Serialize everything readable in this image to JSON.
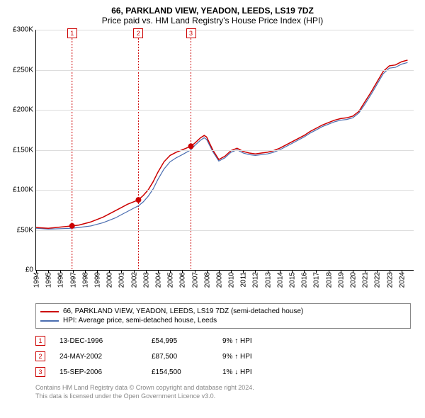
{
  "title": "66, PARKLAND VIEW, YEADON, LEEDS, LS19 7DZ",
  "subtitle": "Price paid vs. HM Land Registry's House Price Index (HPI)",
  "chart": {
    "type": "line",
    "background_color": "#ffffff",
    "grid_color": "#dddddd",
    "axis_color": "#000000",
    "ylim": [
      0,
      300000
    ],
    "ytick_step": 50000,
    "yticks": [
      {
        "v": 0,
        "label": "£0"
      },
      {
        "v": 50000,
        "label": "£50K"
      },
      {
        "v": 100000,
        "label": "£100K"
      },
      {
        "v": 150000,
        "label": "£150K"
      },
      {
        "v": 200000,
        "label": "£200K"
      },
      {
        "v": 250000,
        "label": "£250K"
      },
      {
        "v": 300000,
        "label": "£300K"
      }
    ],
    "xlim": [
      1994,
      2025
    ],
    "xticks": [
      1994,
      1995,
      1996,
      1997,
      1998,
      1999,
      2000,
      2001,
      2002,
      2003,
      2004,
      2005,
      2006,
      2007,
      2008,
      2009,
      2010,
      2011,
      2012,
      2013,
      2014,
      2015,
      2016,
      2017,
      2018,
      2019,
      2020,
      2021,
      2022,
      2023,
      2024
    ],
    "series_property": {
      "color": "#cc0000",
      "line_width": 1.5,
      "data": [
        [
          1994.0,
          53000
        ],
        [
          1995.0,
          52000
        ],
        [
          1996.0,
          53500
        ],
        [
          1996.95,
          54995
        ],
        [
          1997.5,
          56000
        ],
        [
          1998.0,
          58000
        ],
        [
          1998.5,
          60000
        ],
        [
          1999.0,
          63000
        ],
        [
          1999.5,
          66000
        ],
        [
          2000.0,
          70000
        ],
        [
          2000.5,
          74000
        ],
        [
          2001.0,
          78000
        ],
        [
          2001.5,
          82000
        ],
        [
          2002.0,
          85000
        ],
        [
          2002.4,
          87500
        ],
        [
          2002.8,
          93000
        ],
        [
          2003.2,
          100000
        ],
        [
          2003.6,
          110000
        ],
        [
          2004.0,
          122000
        ],
        [
          2004.5,
          135000
        ],
        [
          2005.0,
          143000
        ],
        [
          2005.5,
          147000
        ],
        [
          2006.0,
          150000
        ],
        [
          2006.7,
          154500
        ],
        [
          2007.0,
          158000
        ],
        [
          2007.5,
          165000
        ],
        [
          2007.8,
          168000
        ],
        [
          2008.0,
          166000
        ],
        [
          2008.5,
          150000
        ],
        [
          2009.0,
          138000
        ],
        [
          2009.5,
          142000
        ],
        [
          2010.0,
          149000
        ],
        [
          2010.5,
          152000
        ],
        [
          2011.0,
          148000
        ],
        [
          2011.5,
          146000
        ],
        [
          2012.0,
          145000
        ],
        [
          2012.5,
          146000
        ],
        [
          2013.0,
          147000
        ],
        [
          2013.5,
          149000
        ],
        [
          2014.0,
          152000
        ],
        [
          2014.5,
          156000
        ],
        [
          2015.0,
          160000
        ],
        [
          2015.5,
          164000
        ],
        [
          2016.0,
          168000
        ],
        [
          2016.5,
          173000
        ],
        [
          2017.0,
          177000
        ],
        [
          2017.5,
          181000
        ],
        [
          2018.0,
          184000
        ],
        [
          2018.5,
          187000
        ],
        [
          2019.0,
          189000
        ],
        [
          2019.5,
          190000
        ],
        [
          2020.0,
          192000
        ],
        [
          2020.5,
          198000
        ],
        [
          2021.0,
          210000
        ],
        [
          2021.5,
          222000
        ],
        [
          2022.0,
          235000
        ],
        [
          2022.5,
          248000
        ],
        [
          2023.0,
          255000
        ],
        [
          2023.5,
          256000
        ],
        [
          2024.0,
          260000
        ],
        [
          2024.5,
          262000
        ]
      ]
    },
    "series_hpi": {
      "color": "#4a6db0",
      "line_width": 1.2,
      "data": [
        [
          1994.0,
          52000
        ],
        [
          1995.0,
          51000
        ],
        [
          1996.0,
          51500
        ],
        [
          1996.95,
          52000
        ],
        [
          1997.5,
          53000
        ],
        [
          1998.0,
          54000
        ],
        [
          1998.5,
          55000
        ],
        [
          1999.0,
          57000
        ],
        [
          1999.5,
          59000
        ],
        [
          2000.0,
          62000
        ],
        [
          2000.5,
          65000
        ],
        [
          2001.0,
          69000
        ],
        [
          2001.5,
          73000
        ],
        [
          2002.0,
          77000
        ],
        [
          2002.4,
          80000
        ],
        [
          2002.8,
          85000
        ],
        [
          2003.2,
          92000
        ],
        [
          2003.6,
          101000
        ],
        [
          2004.0,
          113000
        ],
        [
          2004.5,
          126000
        ],
        [
          2005.0,
          135000
        ],
        [
          2005.5,
          140000
        ],
        [
          2006.0,
          144000
        ],
        [
          2006.7,
          150000
        ],
        [
          2007.0,
          155000
        ],
        [
          2007.5,
          162000
        ],
        [
          2007.8,
          165000
        ],
        [
          2008.0,
          163000
        ],
        [
          2008.5,
          148000
        ],
        [
          2009.0,
          136000
        ],
        [
          2009.5,
          140000
        ],
        [
          2010.0,
          147000
        ],
        [
          2010.5,
          150000
        ],
        [
          2011.0,
          146000
        ],
        [
          2011.5,
          144000
        ],
        [
          2012.0,
          143000
        ],
        [
          2012.5,
          144000
        ],
        [
          2013.0,
          145000
        ],
        [
          2013.5,
          147000
        ],
        [
          2014.0,
          150000
        ],
        [
          2014.5,
          154000
        ],
        [
          2015.0,
          158000
        ],
        [
          2015.5,
          162000
        ],
        [
          2016.0,
          166000
        ],
        [
          2016.5,
          171000
        ],
        [
          2017.0,
          175000
        ],
        [
          2017.5,
          179000
        ],
        [
          2018.0,
          182000
        ],
        [
          2018.5,
          185000
        ],
        [
          2019.0,
          187000
        ],
        [
          2019.5,
          188000
        ],
        [
          2020.0,
          190000
        ],
        [
          2020.5,
          196000
        ],
        [
          2021.0,
          207000
        ],
        [
          2021.5,
          219000
        ],
        [
          2022.0,
          232000
        ],
        [
          2022.5,
          245000
        ],
        [
          2023.0,
          252000
        ],
        [
          2023.5,
          253000
        ],
        [
          2024.0,
          257000
        ],
        [
          2024.5,
          259000
        ]
      ]
    },
    "transactions_markers": [
      {
        "num": "1",
        "x": 1996.95,
        "y": 54995
      },
      {
        "num": "2",
        "x": 2002.4,
        "y": 87500
      },
      {
        "num": "3",
        "x": 2006.71,
        "y": 154500
      }
    ],
    "marker_color": "#cc0000",
    "vline_color": "#cc0000"
  },
  "legend": {
    "items": [
      {
        "color": "#cc0000",
        "label": "66, PARKLAND VIEW, YEADON, LEEDS, LS19 7DZ (semi-detached house)"
      },
      {
        "color": "#4a6db0",
        "label": "HPI: Average price, semi-detached house, Leeds"
      }
    ]
  },
  "transactions": [
    {
      "num": "1",
      "date": "13-DEC-1996",
      "price": "£54,995",
      "hpi": "9% ↑ HPI"
    },
    {
      "num": "2",
      "date": "24-MAY-2002",
      "price": "£87,500",
      "hpi": "9% ↑ HPI"
    },
    {
      "num": "3",
      "date": "15-SEP-2006",
      "price": "£154,500",
      "hpi": "1% ↓ HPI"
    }
  ],
  "footer_line1": "Contains HM Land Registry data © Crown copyright and database right 2024.",
  "footer_line2": "This data is licensed under the Open Government Licence v3.0."
}
